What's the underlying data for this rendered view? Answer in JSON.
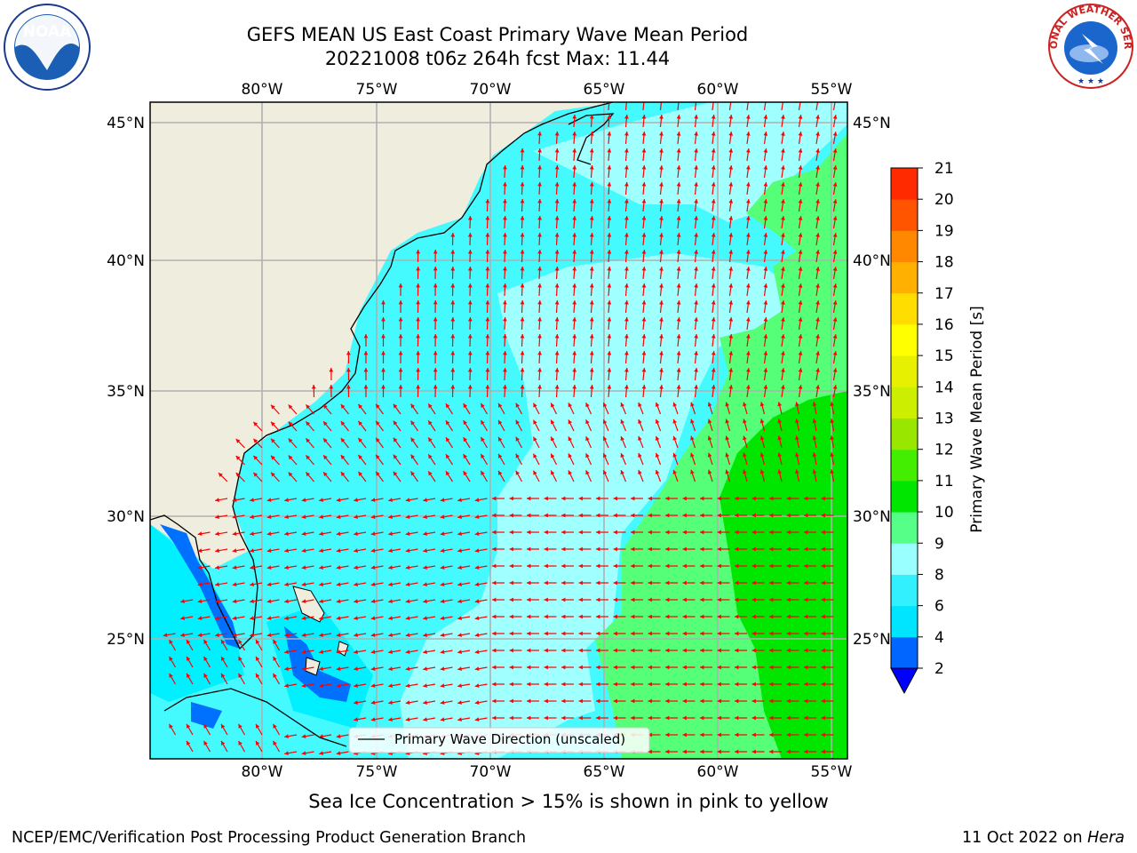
{
  "title_line1": "GEFS MEAN US East Coast Primary Wave Mean Period",
  "title_line2": "20221008 t06z 264h fcst   Max: 11.44",
  "longitude_ticks": [
    "80°W",
    "75°W",
    "70°W",
    "65°W",
    "60°W",
    "55°W"
  ],
  "latitude_ticks": [
    "45°N",
    "40°N",
    "35°N",
    "30°N",
    "25°N"
  ],
  "legend_label": "Primary Wave Direction (unscaled)",
  "colorbar": {
    "label": "Primary Wave Mean Period [s]",
    "ticks": [
      "2",
      "4",
      "6",
      "8",
      "9",
      "10",
      "11",
      "12",
      "13",
      "14",
      "15",
      "16",
      "17",
      "18",
      "19",
      "20",
      "21"
    ],
    "colors": [
      "#0066ff",
      "#00e5ff",
      "#33f0ff",
      "#99ffff",
      "#55ff88",
      "#00e600",
      "#44ee00",
      "#99e600",
      "#ccee00",
      "#e6f000",
      "#ffff00",
      "#ffdd00",
      "#ffb000",
      "#ff8800",
      "#ff5500",
      "#ff2a00",
      "#ff0000"
    ],
    "under_color": "#0000ff"
  },
  "sea_ice_note": "Sea Ice Concentration > 15% is shown in pink to yellow",
  "credit_left": "NCEP/EMC/Verification Post Processing Product Generation Branch",
  "credit_date": "11 Oct 2022 on",
  "credit_host": "Hera",
  "logos": {
    "left_icon": "noaa-logo",
    "left_text": "NOAA",
    "right_icon": "nws-logo",
    "right_text": "NATIONAL WEATHER SERVICE"
  },
  "map_colors": {
    "land": "#efedde",
    "period_4_6": "#00f0ff",
    "period_6_8": "#44faff",
    "period_8_9": "#a0ffff",
    "period_9_10": "#55ff77",
    "period_10_11": "#00e600",
    "period_2_4": "#0070ff",
    "arrows": "#ff0000",
    "grid": "#b0b0b0"
  }
}
